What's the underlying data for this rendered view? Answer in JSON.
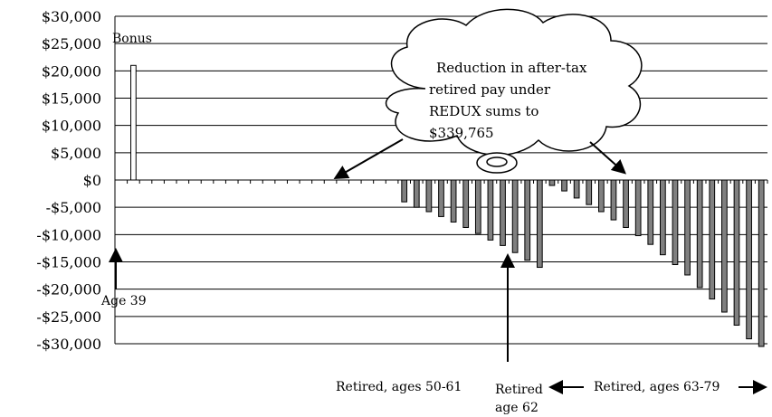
{
  "chart_data": {
    "type": "bar",
    "title": "",
    "xlabel": "",
    "ylabel": "",
    "ylim": [
      -30000,
      30000
    ],
    "ytick_step": 5000,
    "y_tick_labels": [
      "$30,000",
      "$25,000",
      "$20,000",
      "$15,000",
      "$10,000",
      "$5,000",
      "$0",
      "-$5,000",
      "-$10,000",
      "-$15,000",
      "-$20,000",
      "-$25,000",
      "-$30,000"
    ],
    "gridlines": true,
    "series": [
      {
        "values": [
          0,
          21000,
          0,
          0,
          0,
          0,
          0,
          0,
          0,
          0,
          0,
          0,
          0,
          0,
          0,
          0,
          0,
          0,
          0,
          0,
          0,
          0,
          0,
          -4000,
          -5000,
          -5800,
          -6700,
          -7700,
          -8700,
          -9800,
          -11000,
          -12000,
          -13300,
          -14700,
          -16000,
          -1000,
          -2000,
          -3300,
          -4500,
          -5800,
          -7300,
          -8700,
          -10200,
          -11800,
          -13700,
          -15500,
          -17400,
          -19700,
          -21800,
          -24200,
          -26600,
          -29100,
          -30500
        ],
        "color": "#808080"
      }
    ],
    "bar_outline_color": "#000000",
    "bonus_bar_color": "#ffffff",
    "annotations": {
      "bonus": "Bonus",
      "age39": "Age 39",
      "retired_50_61": "Retired, ages 50-61",
      "retired_62_line1": "Retired",
      "retired_62_line2": "age 62",
      "retired_63_79": "Retired, ages 63-79",
      "cloud_lines": [
        "Reduction in after-tax",
        "retired pay under",
        "REDUX sums to",
        "$339,765"
      ]
    }
  }
}
